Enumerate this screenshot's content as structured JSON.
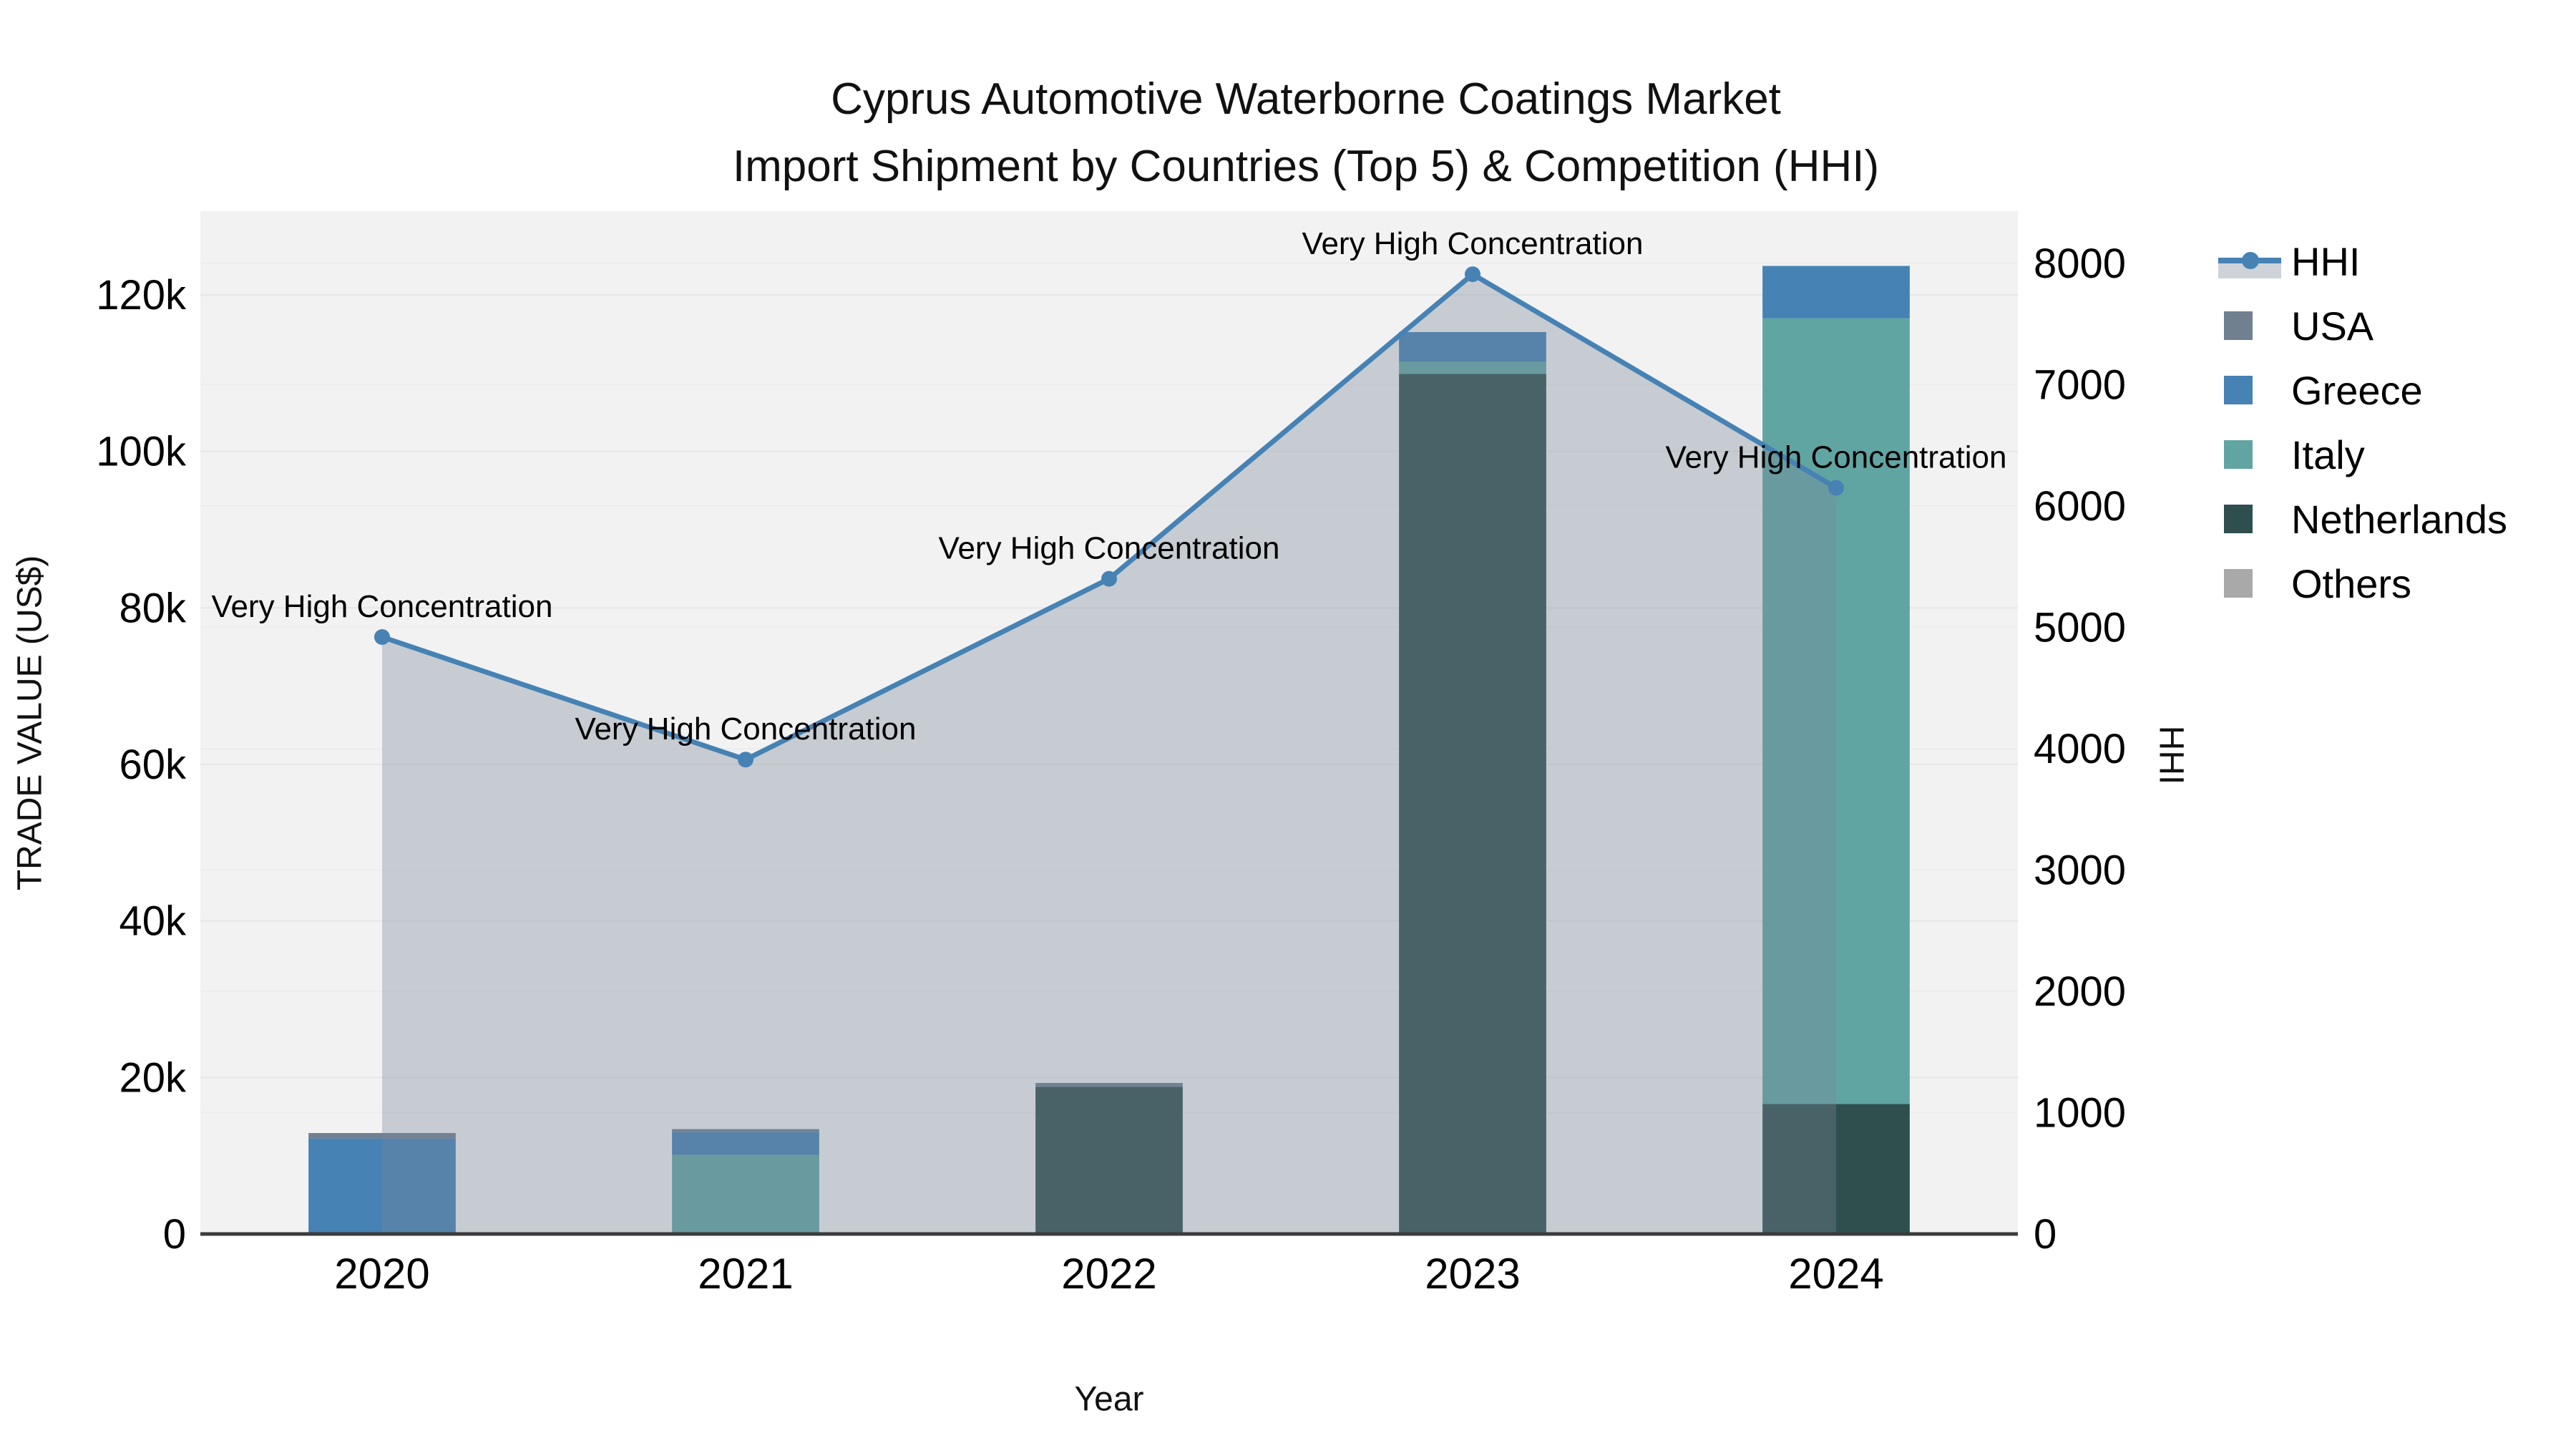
{
  "title": {
    "line1": "Cyprus Automotive Waterborne Coatings Market",
    "line2": "Import Shipment by Countries (Top 5) & Competition (HHI)"
  },
  "chart_data": {
    "type": "bar+line",
    "title": "Cyprus Automotive Waterborne Coatings Market Import Shipment by Countries (Top 5) & Competition (HHI)",
    "x": [
      "2020",
      "2021",
      "2022",
      "2023",
      "2024"
    ],
    "xlabel": "Year",
    "ylabel_left": "TRADE VALUE (US$)",
    "ylabel_right": "HHI",
    "y_left_range": [
      0,
      130700
    ],
    "y_right_range": [
      0,
      8430
    ],
    "y_left_ticks": [
      {
        "value": 0,
        "label": "0"
      },
      {
        "value": 20000,
        "label": "20k"
      },
      {
        "value": 40000,
        "label": "40k"
      },
      {
        "value": 60000,
        "label": "60k"
      },
      {
        "value": 80000,
        "label": "80k"
      },
      {
        "value": 100000,
        "label": "100k"
      },
      {
        "value": 120000,
        "label": "120k"
      }
    ],
    "y_right_ticks": [
      {
        "value": 0,
        "label": "0"
      },
      {
        "value": 1000,
        "label": "1000"
      },
      {
        "value": 2000,
        "label": "2000"
      },
      {
        "value": 3000,
        "label": "3000"
      },
      {
        "value": 4000,
        "label": "4000"
      },
      {
        "value": 5000,
        "label": "5000"
      },
      {
        "value": 6000,
        "label": "6000"
      },
      {
        "value": 7000,
        "label": "7000"
      },
      {
        "value": 8000,
        "label": "8000"
      }
    ],
    "bar_series": [
      {
        "name": "Netherlands",
        "color": "#2F4F4F",
        "values": [
          0,
          0,
          18800,
          109900,
          16600
        ]
      },
      {
        "name": "Italy",
        "color": "#61A5A3",
        "values": [
          0,
          10100,
          0,
          1550,
          100400
        ]
      },
      {
        "name": "Greece",
        "color": "#4682B4",
        "values": [
          12200,
          2900,
          0,
          3800,
          6700
        ]
      },
      {
        "name": "USA",
        "color": "#708090",
        "values": [
          700,
          400,
          500,
          0,
          0
        ]
      },
      {
        "name": "Others",
        "color": "#A9A9A9",
        "values": [
          0,
          0,
          0,
          0,
          0
        ]
      }
    ],
    "line_series": {
      "name": "HHI",
      "color": "#4682B4",
      "area_fill": "rgba(119,136,153,0.35)",
      "values": [
        4920,
        3910,
        5400,
        7910,
        6150
      ]
    },
    "annotations": [
      "Very High Concentration",
      "Very High Concentration",
      "Very High Concentration",
      "Very High Concentration",
      "Very High Concentration"
    ],
    "legend": [
      {
        "label": "HHI",
        "type": "line",
        "color": "#4682B4",
        "band_color": "#cdd3d9"
      },
      {
        "label": "USA",
        "type": "square",
        "color": "#708090"
      },
      {
        "label": "Greece",
        "type": "square",
        "color": "#4682B4"
      },
      {
        "label": "Italy",
        "type": "square",
        "color": "#61A5A3"
      },
      {
        "label": "Netherlands",
        "type": "square",
        "color": "#2F4F4F"
      },
      {
        "label": "Others",
        "type": "square",
        "color": "#A9A9A9"
      }
    ],
    "plot_bg": "#f2f2f2",
    "gridline_color": "#e6e6e6",
    "axis_line_color": "#3b3b3b",
    "legend_position": "right"
  }
}
